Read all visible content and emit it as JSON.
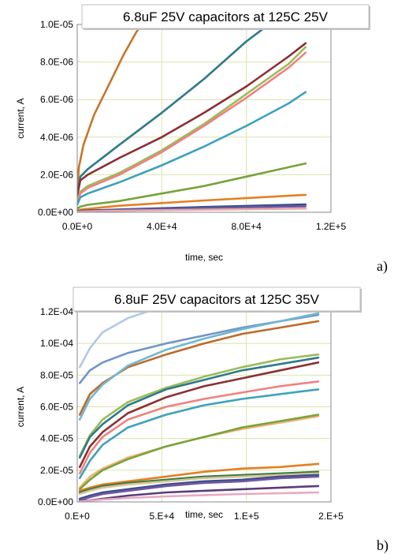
{
  "chart_data": [
    {
      "type": "line",
      "title": "6.8uF 25V capacitors at 125C 25V",
      "xlabel": "time, sec",
      "ylabel": "current, A",
      "xlim": [
        0,
        120000
      ],
      "ylim": [
        0,
        1e-05
      ],
      "x_ticks": [
        "0.0E+0",
        "4.0E+4",
        "8.0E+4",
        "1.2E+5"
      ],
      "y_ticks": [
        "0.0E+00",
        "2.0E-06",
        "4.0E-06",
        "6.0E-06",
        "8.0E-06",
        "1.0E-05"
      ],
      "grid": true,
      "panel_label": "a)",
      "series": [
        {
          "color": "#c8752a",
          "x": [
            0,
            800,
            3000,
            8000,
            15000,
            22000,
            28000,
            32000
          ],
          "y": [
            1.2e-06,
            2.4e-06,
            3.6e-06,
            5.2e-06,
            6.8e-06,
            8.4e-06,
            9.6e-06,
            1.02e-05
          ]
        },
        {
          "color": "#2e7a8a",
          "x": [
            0,
            1500,
            5000,
            20000,
            40000,
            60000,
            80000,
            93000
          ],
          "y": [
            1e-06,
            1.9e-06,
            2.3e-06,
            3.6e-06,
            5.3e-06,
            7.1e-06,
            9.1e-06,
            1.02e-05
          ]
        },
        {
          "color": "#8b2f33",
          "x": [
            0,
            1500,
            5000,
            20000,
            40000,
            60000,
            80000,
            100000,
            108000
          ],
          "y": [
            9e-07,
            1.7e-06,
            2e-06,
            2.9e-06,
            4e-06,
            5.3e-06,
            6.7e-06,
            8.3e-06,
            9e-06
          ]
        },
        {
          "color": "#9bbb59",
          "x": [
            0,
            1500,
            5000,
            20000,
            40000,
            60000,
            80000,
            100000,
            108000
          ],
          "y": [
            6e-07,
            1.1e-06,
            1.4e-06,
            2.1e-06,
            3.3e-06,
            4.7e-06,
            6.3e-06,
            7.9e-06,
            8.8e-06
          ]
        },
        {
          "color": "#f08080",
          "x": [
            0,
            1500,
            5000,
            20000,
            40000,
            60000,
            80000,
            100000,
            108000
          ],
          "y": [
            5e-07,
            1e-06,
            1.3e-06,
            2e-06,
            3.2e-06,
            4.6e-06,
            6.1e-06,
            7.7e-06,
            8.5e-06
          ]
        },
        {
          "color": "#3da2bc",
          "x": [
            0,
            1500,
            5000,
            20000,
            40000,
            60000,
            80000,
            100000,
            108000
          ],
          "y": [
            4e-07,
            8e-07,
            1e-06,
            1.6e-06,
            2.5e-06,
            3.5e-06,
            4.6e-06,
            5.8e-06,
            6.4e-06
          ]
        },
        {
          "color": "#77a33a",
          "x": [
            0,
            1500,
            5000,
            20000,
            40000,
            60000,
            80000,
            100000,
            108000
          ],
          "y": [
            2e-07,
            3e-07,
            4e-07,
            6e-07,
            1e-06,
            1.4e-06,
            1.9e-06,
            2.4e-06,
            2.6e-06
          ]
        },
        {
          "color": "#e67e22",
          "x": [
            0,
            2000,
            20000,
            60000,
            108000
          ],
          "y": [
            1e-07,
            1.5e-07,
            3.5e-07,
            6.3e-07,
            9.3e-07
          ]
        },
        {
          "color": "#3a4f8a",
          "x": [
            0,
            2000,
            20000,
            60000,
            108000
          ],
          "y": [
            5e-08,
            8e-08,
            1.5e-07,
            2.8e-07,
            4.2e-07
          ]
        },
        {
          "color": "#7058a3",
          "x": [
            0,
            2000,
            20000,
            60000,
            108000
          ],
          "y": [
            3e-08,
            5e-08,
            1.2e-07,
            2.2e-07,
            3.2e-07
          ]
        },
        {
          "color": "#e8a9a9",
          "x": [
            0,
            2000,
            20000,
            60000,
            108000
          ],
          "y": [
            2e-08,
            4e-08,
            8e-08,
            1.4e-07,
            2e-07
          ]
        }
      ]
    },
    {
      "type": "line",
      "title": "6.8uF 25V capacitors at 125C 35V",
      "xlabel": "time, sec",
      "ylabel": "current, A",
      "xlim": [
        0,
        200000
      ],
      "ylim": [
        0,
        0.00012
      ],
      "x_ticks": [
        "0.E+0",
        "5.E+4",
        "1.E+5",
        "2.E+5"
      ],
      "y_ticks": [
        "0.0E+00",
        "2.0E-05",
        "4.0E-05",
        "6.0E-05",
        "8.0E-05",
        "1.0E-04",
        "1.2E-04"
      ],
      "grid": true,
      "panel_label": "b)",
      "series": [
        {
          "color": "#b4c7e7",
          "x": [
            2000,
            10000,
            20000,
            40000,
            55000
          ],
          "y": [
            8.5e-05,
            9.7e-05,
            0.000107,
            0.000116,
            0.00012
          ]
        },
        {
          "color": "#7095c8",
          "x": [
            2000,
            10000,
            20000,
            40000,
            70000,
            100000,
            130000,
            160000,
            190000
          ],
          "y": [
            7.5e-05,
            8.3e-05,
            8.8e-05,
            9.4e-05,
            0.0001,
            0.000105,
            0.00011,
            0.000114,
            0.000118
          ]
        },
        {
          "color": "#c0692a",
          "x": [
            2000,
            10000,
            20000,
            40000,
            70000,
            100000,
            130000,
            160000,
            190000
          ],
          "y": [
            5.5e-05,
            6.8e-05,
            7.5e-05,
            8.5e-05,
            9.3e-05,
            0.0001,
            0.000106,
            0.00011,
            0.000114
          ]
        },
        {
          "color": "#6fb8d0",
          "x": [
            2000,
            10000,
            20000,
            40000,
            70000,
            100000,
            130000,
            160000,
            190000
          ],
          "y": [
            5.2e-05,
            6.5e-05,
            7.4e-05,
            8.6e-05,
            9.6e-05,
            0.000103,
            0.000109,
            0.000114,
            0.000119
          ]
        },
        {
          "color": "#9bbb59",
          "x": [
            2000,
            10000,
            20000,
            40000,
            70000,
            100000,
            130000,
            160000,
            190000
          ],
          "y": [
            2.9e-05,
            4.2e-05,
            5.2e-05,
            6.3e-05,
            7.2e-05,
            7.9e-05,
            8.5e-05,
            9e-05,
            9.3e-05
          ]
        },
        {
          "color": "#2e7a8a",
          "x": [
            2000,
            10000,
            20000,
            40000,
            70000,
            100000,
            130000,
            160000,
            190000
          ],
          "y": [
            2.8e-05,
            4.1e-05,
            4.9e-05,
            6.1e-05,
            7.1e-05,
            7.7e-05,
            8.3e-05,
            8.7e-05,
            9.1e-05
          ]
        },
        {
          "color": "#8b2f33",
          "x": [
            2000,
            10000,
            20000,
            40000,
            70000,
            100000,
            130000,
            160000,
            190000
          ],
          "y": [
            2.2e-05,
            3.5e-05,
            4.4e-05,
            5.6e-05,
            6.6e-05,
            7.3e-05,
            7.8e-05,
            8.3e-05,
            8.8e-05
          ]
        },
        {
          "color": "#f08080",
          "x": [
            2000,
            10000,
            20000,
            40000,
            70000,
            100000,
            130000,
            160000,
            190000
          ],
          "y": [
            1.8e-05,
            3.1e-05,
            4.1e-05,
            5.2e-05,
            6e-05,
            6.5e-05,
            6.9e-05,
            7.3e-05,
            7.6e-05
          ]
        },
        {
          "color": "#3da2bc",
          "x": [
            2000,
            10000,
            20000,
            40000,
            70000,
            100000,
            130000,
            160000,
            190000
          ],
          "y": [
            1.5e-05,
            2.6e-05,
            3.6e-05,
            4.7e-05,
            5.5e-05,
            6.1e-05,
            6.5e-05,
            6.8e-05,
            7.1e-05
          ]
        },
        {
          "color": "#f0b27a",
          "x": [
            2000,
            10000,
            20000,
            40000,
            70000,
            100000,
            130000,
            160000,
            190000
          ],
          "y": [
            9e-06,
            1.6e-05,
            2.1e-05,
            2.8e-05,
            3.5e-05,
            4.1e-05,
            4.6e-05,
            5e-05,
            5.4e-05
          ]
        },
        {
          "color": "#77a33a",
          "x": [
            2000,
            10000,
            20000,
            40000,
            70000,
            100000,
            130000,
            160000,
            190000
          ],
          "y": [
            8e-06,
            1.4e-05,
            2e-05,
            2.7e-05,
            3.5e-05,
            4.1e-05,
            4.7e-05,
            5.1e-05,
            5.5e-05
          ]
        },
        {
          "color": "#e67e22",
          "x": [
            2000,
            10000,
            20000,
            40000,
            70000,
            100000,
            130000,
            160000,
            190000
          ],
          "y": [
            7e-06,
            9e-06,
            1.1e-05,
            1.3e-05,
            1.6e-05,
            1.9e-05,
            2.1e-05,
            2.2e-05,
            2.4e-05
          ]
        },
        {
          "color": "#3a7d44",
          "x": [
            2000,
            10000,
            20000,
            40000,
            70000,
            100000,
            130000,
            160000,
            190000
          ],
          "y": [
            6e-06,
            8e-06,
            1e-05,
            1.2e-05,
            1.4e-05,
            1.6e-05,
            1.7e-05,
            1.8e-05,
            1.9e-05
          ]
        },
        {
          "color": "#d8c59a",
          "x": [
            2000,
            10000,
            20000,
            40000,
            70000,
            100000,
            130000,
            160000,
            190000
          ],
          "y": [
            5e-06,
            7e-06,
            9e-06,
            1.1e-05,
            1.3e-05,
            1.5e-05,
            1.6e-05,
            1.7e-05,
            1.8e-05
          ]
        },
        {
          "color": "#3a4f8a",
          "x": [
            2000,
            10000,
            20000,
            40000,
            70000,
            100000,
            130000,
            160000,
            190000
          ],
          "y": [
            2e-06,
            4e-06,
            6e-06,
            8e-06,
            1.1e-05,
            1.3e-05,
            1.4e-05,
            1.6e-05,
            1.7e-05
          ]
        },
        {
          "color": "#7058a3",
          "x": [
            2000,
            10000,
            20000,
            40000,
            70000,
            100000,
            130000,
            160000,
            190000
          ],
          "y": [
            1e-06,
            3e-06,
            5e-06,
            7e-06,
            1e-05,
            1.2e-05,
            1.3e-05,
            1.5e-05,
            1.6e-05
          ]
        },
        {
          "color": "#5a3c7a",
          "x": [
            2000,
            10000,
            20000,
            40000,
            70000,
            100000,
            130000,
            160000,
            190000
          ],
          "y": [
            5e-07,
            1e-06,
            2e-06,
            4e-06,
            6e-06,
            7e-06,
            8e-06,
            9e-06,
            1e-05
          ]
        },
        {
          "color": "#e8a9c0",
          "x": [
            2000,
            10000,
            20000,
            40000,
            70000,
            100000,
            130000,
            160000,
            190000
          ],
          "y": [
            3e-07,
            8e-07,
            1.5e-06,
            2.5e-06,
            3.5e-06,
            4.3e-06,
            5e-06,
            5.5e-06,
            6e-06
          ]
        }
      ]
    }
  ]
}
